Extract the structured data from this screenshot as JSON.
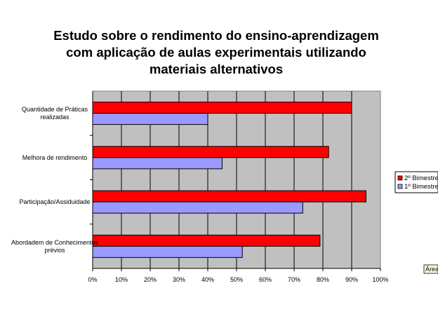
{
  "chart_data": {
    "type": "bar",
    "orientation": "horizontal",
    "title_lines": [
      "Estudo sobre o rendimento do ensino-aprendizagem",
      "com aplicação de aulas experimentais utilizando",
      "materiais alternativos"
    ],
    "categories": [
      [
        "Quantidade de Práticas",
        "realizadas"
      ],
      [
        "Melhora de rendimento"
      ],
      [
        "Participação/Assiduidade"
      ],
      [
        "Abordadem de Conhecimentos",
        "prévios"
      ]
    ],
    "series": [
      {
        "name": "2º Bimestre",
        "color": "#ff0000",
        "values": [
          90,
          82,
          95,
          79
        ]
      },
      {
        "name": "1º Bimestre",
        "color": "#9999ff",
        "values": [
          40,
          45,
          73,
          52
        ]
      }
    ],
    "xlim": [
      0,
      100
    ],
    "x_ticks": [
      "0%",
      "10%",
      "20%",
      "30%",
      "40%",
      "50%",
      "60%",
      "70%",
      "80%",
      "90%",
      "100%"
    ],
    "grid": true,
    "plot_background": "#c0c0c0",
    "legend_position": "right"
  },
  "tooltip": {
    "text": "Área d"
  }
}
